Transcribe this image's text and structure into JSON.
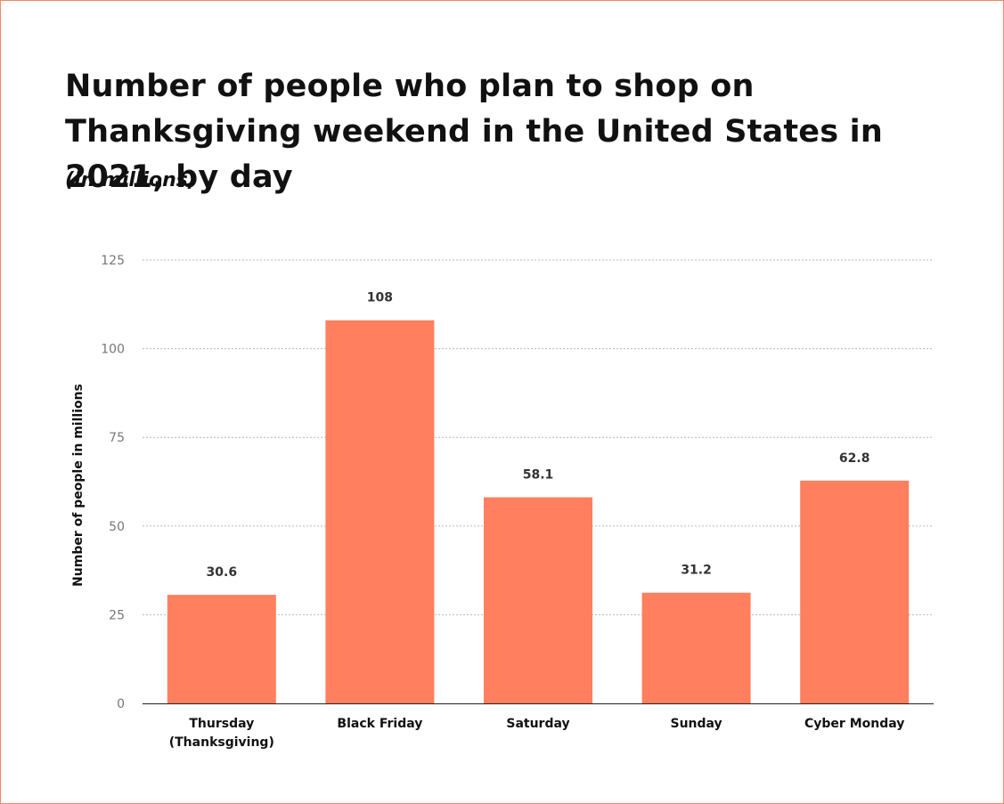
{
  "chart_data": {
    "type": "bar",
    "title": "Number of people who plan to shop on Thanksgiving weekend in the United States in 2021, by day",
    "subtitle": "(in millions)",
    "xlabel": "",
    "ylabel": "Number of people in millions",
    "categories": [
      [
        "Thursday",
        "(Thanksgiving)"
      ],
      [
        "Black Friday"
      ],
      [
        "Saturday"
      ],
      [
        "Sunday"
      ],
      [
        "Cyber Monday"
      ]
    ],
    "values": [
      30.6,
      108,
      58.1,
      31.2,
      62.8
    ],
    "data_labels": [
      "30.6",
      "108",
      "58.1",
      "31.2",
      "62.8"
    ],
    "ylim": [
      0,
      125
    ],
    "yticks": [
      0,
      25,
      50,
      75,
      100,
      125
    ],
    "grid": true,
    "bar_color": "#ff7f5e",
    "border_color": "#f08a66"
  }
}
